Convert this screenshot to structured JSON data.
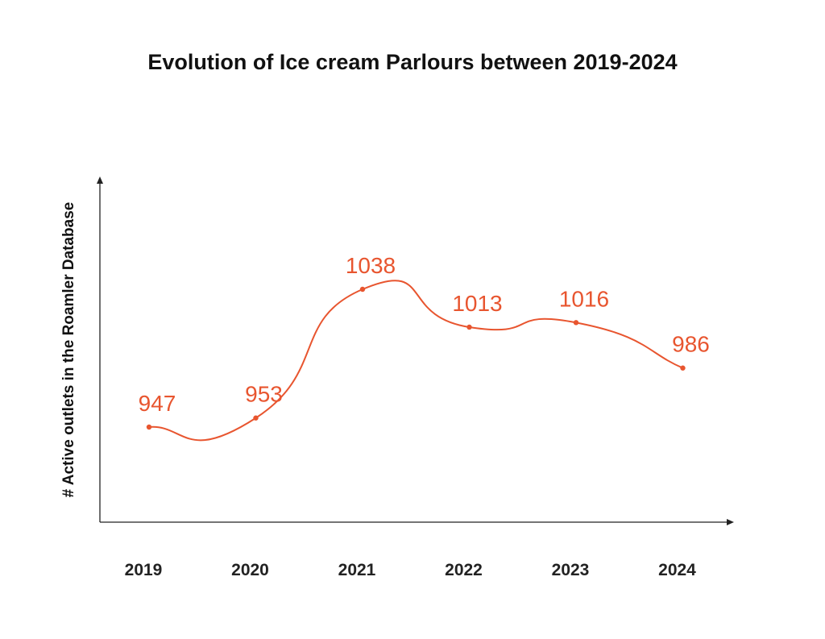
{
  "chart_data": {
    "type": "line",
    "title": "Evolution of Ice cream Parlours between 2019-2024",
    "xlabel": "",
    "ylabel": "# Active outlets in the Roamler Database",
    "categories": [
      "2019",
      "2020",
      "2021",
      "2022",
      "2023",
      "2024"
    ],
    "series": [
      {
        "values": [
          947,
          953,
          1038,
          1013,
          1016,
          986
        ]
      }
    ],
    "data_labels": [
      "947",
      "953",
      "1038",
      "1013",
      "1016",
      "986"
    ],
    "line_style": "smooth",
    "grid": false,
    "legend": "none",
    "colors": {
      "series": "#e8552f",
      "axis": "#222222",
      "text": "#111111"
    }
  }
}
